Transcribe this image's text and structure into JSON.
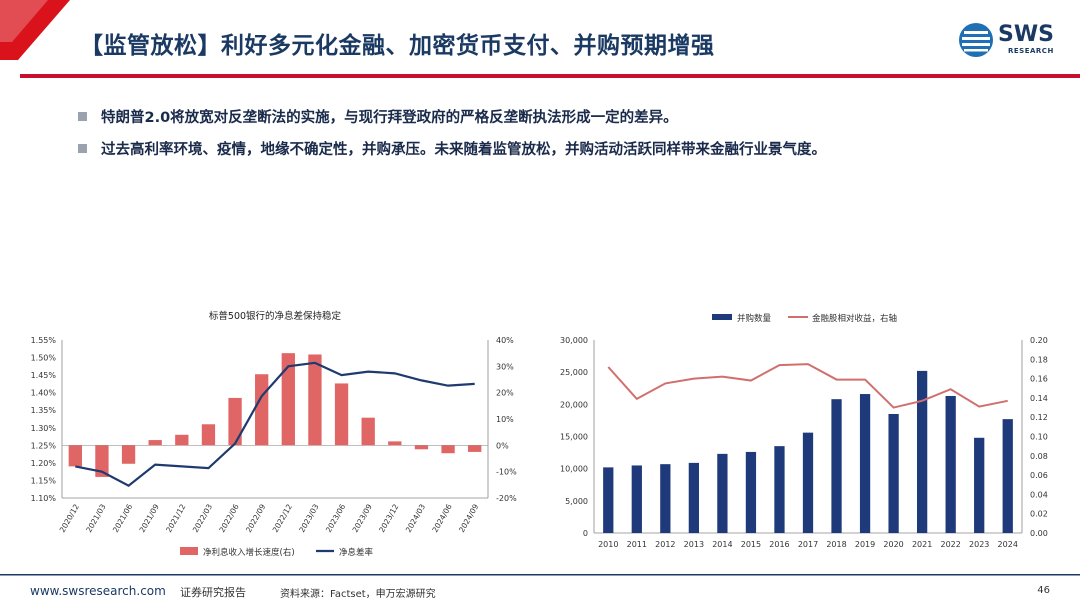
{
  "header": {
    "title": "【监管放松】利好多元化金融、加密货币支付、并购预期增强",
    "logo_main": "SWS",
    "logo_sub": "RESEARCH"
  },
  "bullets": [
    "特朗普2.0将放宽对反垄断法的实施，与现行拜登政府的严格反垄断执法形成一定的差异。",
    "过去高利率环境、疫情，地缘不确定性，并购承压。未来随着监管放松，并购活动活跃同样带来金融行业景气度。"
  ],
  "footer": {
    "url": "www.swsresearch.com",
    "label": "证券研究报告",
    "source": "资料来源：Factset，申万宏源研究",
    "page": "46"
  },
  "colors": {
    "bar": "#e06666",
    "line": "#1f3a6e",
    "bar2": "#1f3a7a",
    "line2": "#d0706e"
  },
  "chart_data": [
    {
      "type": "bar+line",
      "title": "标普500银行的净息差保持稳定",
      "categories": [
        "2020/12",
        "2021/03",
        "2021/06",
        "2021/09",
        "2021/12",
        "2022/03",
        "2022/06",
        "2022/09",
        "2022/12",
        "2023/03",
        "2023/06",
        "2023/09",
        "2023/12",
        "2024/03",
        "2024/06",
        "2024/09"
      ],
      "series": [
        {
          "name": "净利息收入增长速度(右)",
          "type": "bar",
          "axis": "right",
          "values": [
            -0.08,
            -0.12,
            -0.07,
            0.02,
            0.04,
            0.08,
            0.18,
            0.27,
            0.35,
            0.345,
            0.235,
            0.105,
            0.015,
            -0.015,
            -0.03,
            -0.025
          ]
        },
        {
          "name": "净息差率",
          "type": "line",
          "axis": "left",
          "values": [
            1.19,
            1.175,
            1.135,
            1.195,
            1.19,
            1.185,
            1.255,
            1.39,
            1.475,
            1.485,
            1.45,
            1.46,
            1.455,
            1.435,
            1.42,
            1.425
          ]
        }
      ],
      "y_left": {
        "min": 1.1,
        "max": 1.55,
        "ticks": [
          "1.10%",
          "1.15%",
          "1.20%",
          "1.25%",
          "1.30%",
          "1.35%",
          "1.40%",
          "1.45%",
          "1.50%",
          "1.55%"
        ]
      },
      "y_right": {
        "min": -0.2,
        "max": 0.4,
        "ticks": [
          "-20%",
          "-10%",
          "0%",
          "10%",
          "20%",
          "30%",
          "40%"
        ]
      },
      "legend": "bottom"
    },
    {
      "type": "bar+line",
      "title": "",
      "categories": [
        "2010",
        "2011",
        "2012",
        "2013",
        "2014",
        "2015",
        "2016",
        "2017",
        "2018",
        "2019",
        "2020",
        "2021",
        "2022",
        "2023",
        "2024"
      ],
      "series": [
        {
          "name": "并购数量",
          "type": "bar",
          "axis": "left",
          "values": [
            10200,
            10500,
            10700,
            10900,
            12300,
            12600,
            13500,
            15600,
            20800,
            21600,
            18500,
            25200,
            21300,
            14800,
            17700
          ]
        },
        {
          "name": "金融股相对收益，右轴",
          "type": "line",
          "axis": "right",
          "values": [
            0.172,
            0.139,
            0.155,
            0.16,
            0.162,
            0.158,
            0.174,
            0.175,
            0.159,
            0.159,
            0.13,
            0.137,
            0.149,
            0.131,
            0.137
          ]
        }
      ],
      "y_left": {
        "min": 0,
        "max": 30000,
        "ticks": [
          "0",
          "5,000",
          "10,000",
          "15,000",
          "20,000",
          "25,000",
          "30,000"
        ]
      },
      "y_right": {
        "min": 0,
        "max": 0.2,
        "ticks": [
          "0.00",
          "0.02",
          "0.04",
          "0.06",
          "0.08",
          "0.10",
          "0.12",
          "0.14",
          "0.16",
          "0.18",
          "0.20"
        ]
      },
      "legend": "top"
    }
  ]
}
